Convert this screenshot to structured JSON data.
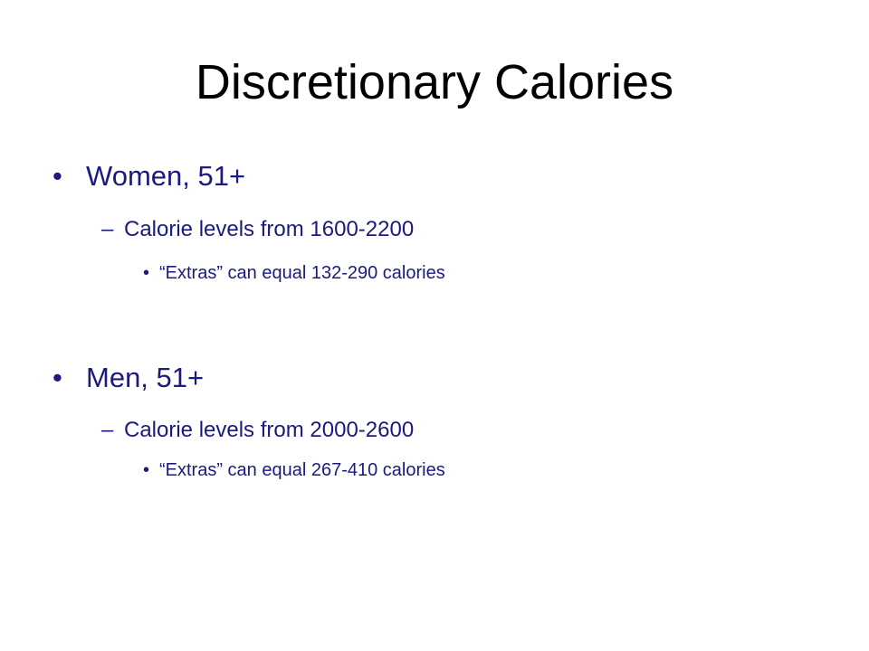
{
  "slide": {
    "title": "Discretionary Calories",
    "groups": [
      {
        "heading": "Women, 51+",
        "sub": "Calorie levels from 1600-2200",
        "detail": "“Extras” can equal 132-290 calories"
      },
      {
        "heading": "Men, 51+",
        "sub": "Calorie levels from 2000-2600",
        "detail": "“Extras” can equal 267-410 calories"
      }
    ],
    "markers": {
      "level1": "•",
      "level2": "–",
      "level3": "•"
    },
    "colors": {
      "title": "#000000",
      "body": "#1a1a80",
      "background": "#ffffff"
    }
  }
}
